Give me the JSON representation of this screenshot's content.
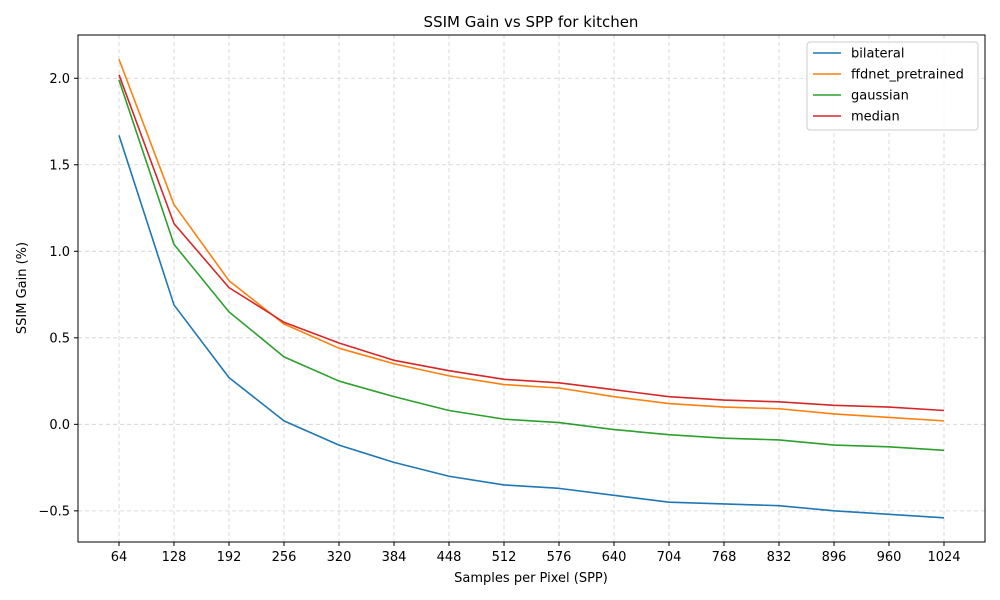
{
  "chart_data": {
    "type": "line",
    "title": "SSIM Gain vs SPP for kitchen",
    "xlabel": "Samples per Pixel (SPP)",
    "ylabel": "SSIM Gain (%)",
    "x": [
      64,
      128,
      192,
      256,
      320,
      384,
      448,
      512,
      576,
      640,
      704,
      768,
      832,
      896,
      960,
      1024
    ],
    "xticks": [
      "64",
      "128",
      "192",
      "256",
      "320",
      "384",
      "448",
      "512",
      "576",
      "640",
      "704",
      "768",
      "832",
      "896",
      "960",
      "1024"
    ],
    "yticks": [
      "−0.5",
      "0.0",
      "0.5",
      "1.0",
      "1.5",
      "2.0"
    ],
    "ytick_values": [
      -0.5,
      0.0,
      0.5,
      1.0,
      1.5,
      2.0
    ],
    "ylim": [
      -0.68,
      2.25
    ],
    "grid": true,
    "legend_position": "top-right",
    "series": [
      {
        "name": "bilateral",
        "color": "#1f77b4",
        "values": [
          1.67,
          0.69,
          0.27,
          0.02,
          -0.12,
          -0.22,
          -0.3,
          -0.35,
          -0.37,
          -0.41,
          -0.45,
          -0.46,
          -0.47,
          -0.5,
          -0.52,
          -0.54
        ]
      },
      {
        "name": "ffdnet_pretrained",
        "color": "#ff7f0e",
        "values": [
          2.11,
          1.27,
          0.83,
          0.58,
          0.44,
          0.35,
          0.28,
          0.23,
          0.21,
          0.16,
          0.12,
          0.1,
          0.09,
          0.06,
          0.04,
          0.02
        ]
      },
      {
        "name": "gaussian",
        "color": "#2ca02c",
        "values": [
          1.99,
          1.04,
          0.65,
          0.39,
          0.25,
          0.16,
          0.08,
          0.03,
          0.01,
          -0.03,
          -0.06,
          -0.08,
          -0.09,
          -0.12,
          -0.13,
          -0.15
        ]
      },
      {
        "name": "median",
        "color": "#d62728",
        "values": [
          2.02,
          1.16,
          0.79,
          0.59,
          0.47,
          0.37,
          0.31,
          0.26,
          0.24,
          0.2,
          0.16,
          0.14,
          0.13,
          0.11,
          0.1,
          0.08
        ]
      }
    ]
  }
}
